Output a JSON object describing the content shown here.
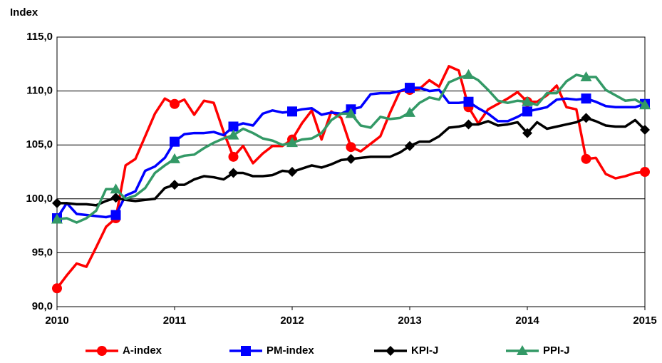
{
  "chart_data": {
    "type": "line",
    "y_label": "Index",
    "x": [
      2010,
      2010.083,
      2010.167,
      2010.25,
      2010.333,
      2010.417,
      2010.5,
      2010.583,
      2010.667,
      2010.75,
      2010.833,
      2010.917,
      2011,
      2011.083,
      2011.167,
      2011.25,
      2011.333,
      2011.417,
      2011.5,
      2011.583,
      2011.667,
      2011.75,
      2011.833,
      2011.917,
      2012,
      2012.083,
      2012.167,
      2012.25,
      2012.333,
      2012.417,
      2012.5,
      2012.583,
      2012.667,
      2012.75,
      2012.833,
      2012.917,
      2013,
      2013.083,
      2013.167,
      2013.25,
      2013.333,
      2013.417,
      2013.5,
      2013.583,
      2013.667,
      2013.75,
      2013.833,
      2013.917,
      2014,
      2014.083,
      2014.167,
      2014.25,
      2014.333,
      2014.417,
      2014.5,
      2014.583,
      2014.667,
      2014.75,
      2014.833,
      2014.917,
      2015
    ],
    "series": [
      {
        "name": "A-index",
        "color": "#ff0000",
        "marker": "circle",
        "values": [
          91.7,
          92.9,
          94.0,
          93.7,
          95.5,
          97.4,
          98.2,
          103.1,
          103.7,
          105.8,
          107.9,
          109.3,
          108.8,
          109.2,
          107.8,
          109.1,
          108.9,
          106.2,
          103.9,
          104.9,
          103.3,
          104.2,
          104.9,
          104.9,
          105.5,
          107.0,
          108.2,
          105.5,
          108.1,
          107.5,
          104.8,
          104.4,
          105.1,
          105.8,
          108.0,
          110.0,
          110.1,
          110.2,
          111.0,
          110.4,
          112.3,
          111.9,
          108.5,
          107.0,
          108.3,
          108.8,
          109.3,
          109.9,
          109.0,
          109.0,
          109.6,
          110.5,
          108.5,
          108.3,
          103.7,
          103.8,
          102.3,
          101.9,
          102.1,
          102.4,
          102.5
        ]
      },
      {
        "name": "PM-index",
        "color": "#0000ff",
        "marker": "square",
        "values": [
          98.2,
          99.6,
          98.6,
          98.5,
          98.4,
          98.3,
          98.5,
          100.3,
          100.7,
          102.6,
          103.0,
          103.8,
          105.3,
          106.0,
          106.1,
          106.1,
          106.2,
          105.9,
          106.7,
          107.0,
          106.8,
          107.9,
          108.2,
          108.0,
          108.1,
          108.3,
          108.4,
          107.8,
          108.0,
          107.9,
          108.3,
          108.5,
          109.7,
          109.8,
          109.8,
          110.0,
          110.3,
          110.3,
          110.0,
          110.1,
          108.9,
          108.9,
          109.0,
          108.4,
          107.9,
          107.2,
          107.2,
          107.6,
          108.1,
          108.3,
          108.5,
          109.2,
          109.3,
          109.2,
          109.3,
          109.0,
          108.6,
          108.5,
          108.5,
          108.5,
          108.8
        ]
      },
      {
        "name": "KPI-J",
        "color": "#000000",
        "marker": "diamond",
        "values": [
          99.6,
          99.6,
          99.5,
          99.5,
          99.4,
          99.8,
          100.1,
          99.9,
          99.8,
          99.9,
          100.0,
          101.0,
          101.3,
          101.3,
          101.8,
          102.1,
          102.0,
          101.8,
          102.4,
          102.4,
          102.1,
          102.1,
          102.2,
          102.6,
          102.5,
          102.8,
          103.1,
          102.9,
          103.2,
          103.6,
          103.7,
          103.8,
          103.9,
          103.9,
          103.9,
          104.3,
          104.9,
          105.3,
          105.3,
          105.8,
          106.6,
          106.7,
          106.9,
          106.9,
          107.2,
          106.8,
          106.9,
          107.1,
          106.1,
          107.1,
          106.5,
          106.7,
          106.9,
          107.1,
          107.5,
          107.2,
          106.8,
          106.7,
          106.7,
          107.3,
          106.4
        ]
      },
      {
        "name": "PPI-J",
        "color": "#339966",
        "marker": "triangle",
        "values": [
          98.1,
          98.2,
          97.8,
          98.2,
          98.9,
          100.9,
          100.9,
          100.0,
          100.3,
          101.0,
          102.4,
          103.1,
          103.7,
          104.0,
          104.1,
          104.7,
          105.2,
          105.6,
          105.9,
          106.5,
          106.1,
          105.6,
          105.4,
          105.0,
          105.2,
          105.5,
          105.6,
          106.1,
          107.3,
          107.9,
          107.9,
          106.8,
          106.6,
          107.6,
          107.4,
          107.5,
          108.0,
          108.9,
          109.4,
          109.2,
          110.8,
          111.2,
          111.5,
          111.0,
          110.1,
          109.1,
          108.9,
          109.1,
          109.0,
          108.7,
          109.8,
          109.8,
          110.9,
          111.5,
          111.3,
          111.3,
          110.1,
          109.6,
          109.1,
          109.2,
          108.7
        ]
      }
    ],
    "xlim": [
      2010,
      2015
    ],
    "xticks": [
      2010,
      2011,
      2012,
      2013,
      2014,
      2015
    ],
    "ylim": [
      90,
      115
    ],
    "yticks": [
      {
        "value": 90,
        "label": "90,0"
      },
      {
        "value": 95,
        "label": "95,0"
      },
      {
        "value": 100,
        "label": "100,0"
      },
      {
        "value": 105,
        "label": "105,0"
      },
      {
        "value": 110,
        "label": "110,0"
      },
      {
        "value": 115,
        "label": "115,0"
      }
    ],
    "grid": true,
    "legend": "bottom"
  }
}
